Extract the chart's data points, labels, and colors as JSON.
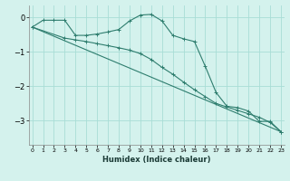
{
  "xlabel": "Humidex (Indice chaleur)",
  "bg_color": "#d4f2ed",
  "grid_color": "#a8ddd6",
  "line_color": "#2e7d6e",
  "x_ticks": [
    0,
    1,
    2,
    3,
    4,
    5,
    6,
    7,
    8,
    9,
    10,
    11,
    12,
    13,
    14,
    15,
    16,
    17,
    18,
    19,
    20,
    21,
    22,
    23
  ],
  "ylim": [
    -3.7,
    0.35
  ],
  "xlim": [
    -0.3,
    23.3
  ],
  "yticks": [
    0,
    -1,
    -2,
    -3
  ],
  "series1_x": [
    0,
    1,
    2,
    3,
    4,
    5,
    6,
    7,
    8,
    9,
    10,
    11,
    12,
    13,
    14,
    15,
    16,
    17,
    18,
    19,
    20,
    21,
    22,
    23
  ],
  "series1_y": [
    -0.28,
    -0.08,
    -0.08,
    -0.08,
    -0.52,
    -0.52,
    -0.48,
    -0.42,
    -0.35,
    -0.1,
    0.07,
    0.09,
    -0.1,
    -0.52,
    -0.62,
    -0.7,
    -1.42,
    -2.18,
    -2.58,
    -2.62,
    -2.72,
    -3.02,
    -3.02,
    -3.32
  ],
  "series2_x": [
    0,
    3,
    4,
    5,
    6,
    7,
    8,
    9,
    10,
    11,
    12,
    13,
    14,
    15,
    16,
    17,
    18,
    19,
    20,
    21,
    22,
    23
  ],
  "series2_y": [
    -0.28,
    -0.6,
    -0.65,
    -0.7,
    -0.76,
    -0.82,
    -0.88,
    -0.95,
    -1.05,
    -1.22,
    -1.45,
    -1.65,
    -1.88,
    -2.1,
    -2.3,
    -2.5,
    -2.6,
    -2.7,
    -2.8,
    -2.9,
    -3.05,
    -3.32
  ],
  "series3_x": [
    0,
    23
  ],
  "series3_y": [
    -0.28,
    -3.32
  ]
}
